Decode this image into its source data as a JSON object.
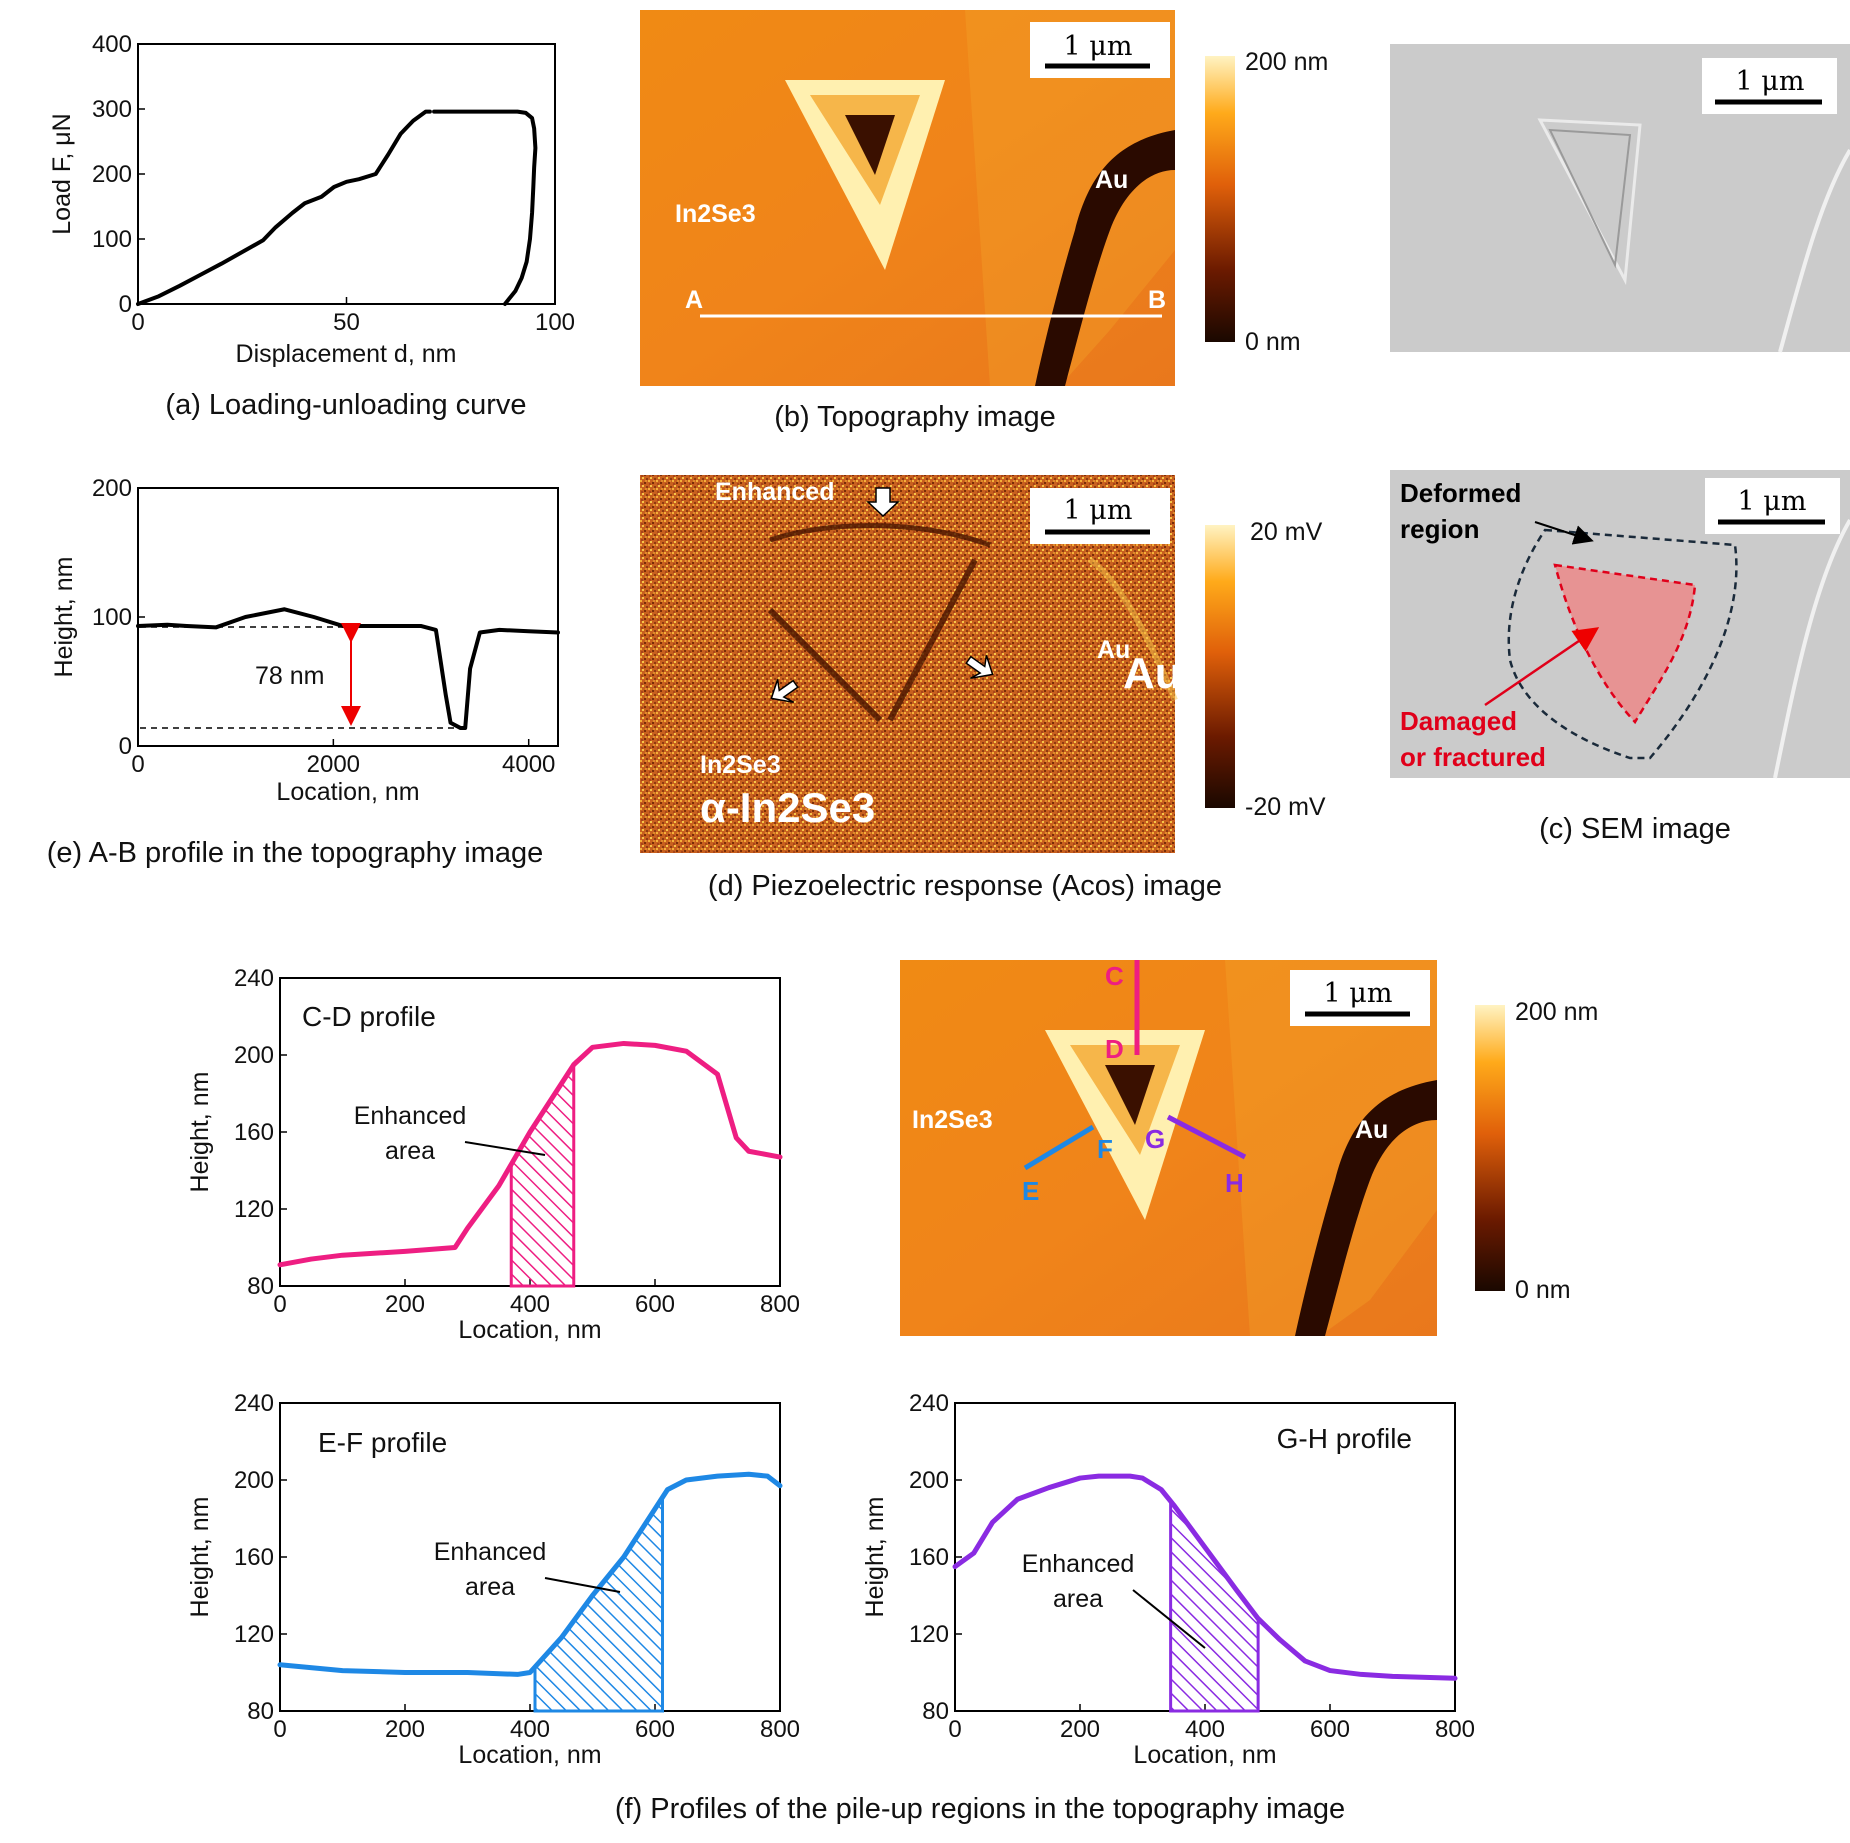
{
  "captions": {
    "a": "(a) Loading-unloading curve",
    "b": "(b) Topography image",
    "c": "(c) SEM image",
    "d": "(d) Piezoelectric response (Acos) image",
    "e": "(e) A-B profile in the topography image",
    "f": "(f) Profiles of the pile-up regions in the topography image"
  },
  "panel_a": {
    "ylabel": "Load F, μN",
    "xlabel": "Displacement d, nm",
    "x_ticks": [
      "0",
      "50",
      "100"
    ],
    "y_ticks": [
      "0",
      "100",
      "200",
      "300",
      "400"
    ],
    "chart_data": {
      "type": "line",
      "xlim": [
        0,
        100
      ],
      "ylim": [
        0,
        400
      ],
      "series": [
        {
          "x": [
            0,
            5,
            10,
            15,
            20,
            25,
            30,
            33,
            37,
            40,
            44,
            47,
            50,
            53,
            57,
            60,
            63,
            66,
            69,
            70
          ],
          "values": [
            0,
            12,
            28,
            45,
            62,
            80,
            98,
            118,
            140,
            155,
            165,
            180,
            188,
            192,
            200,
            230,
            262,
            282,
            296,
            296
          ]
        },
        {
          "x": [
            71,
            74,
            77,
            80,
            83,
            86,
            89,
            91,
            93,
            94.5,
            95,
            95.3,
            95,
            94.8,
            94.5,
            94,
            93.2,
            92,
            90.5,
            89,
            88
          ],
          "values": [
            296,
            296,
            296,
            296,
            296,
            296,
            296,
            296,
            294,
            286,
            270,
            240,
            210,
            180,
            140,
            100,
            65,
            40,
            20,
            8,
            0
          ]
        }
      ]
    }
  },
  "panel_b": {
    "scale_bar": "1 μm",
    "label_in2se3": "In2Se3",
    "label_au": "Au",
    "point_a": "A",
    "point_b": "B",
    "colorbar_max": "200 nm",
    "colorbar_min": "0 nm"
  },
  "panel_c": {
    "scale_bar": "1 μm",
    "deformed_line1": "Deformed",
    "deformed_line2": "region",
    "damaged_line1": "Damaged",
    "damaged_line2": "or fractured"
  },
  "panel_d": {
    "scale_bar": "1 μm",
    "enhanced": "Enhanced",
    "au_small": "Au",
    "au_large": "Au",
    "in2se3_small": "In2Se3",
    "alpha_in2se3": "α-In2Se3",
    "colorbar_max": "20 mV",
    "colorbar_min": "-20 mV"
  },
  "panel_e": {
    "ylabel": "Height, nm",
    "xlabel": "Location, nm",
    "x_ticks": [
      "0",
      "2000",
      "4000"
    ],
    "y_ticks": [
      "0",
      "100",
      "200"
    ],
    "annotation": "78 nm",
    "chart_data": {
      "type": "line",
      "xlim": [
        0,
        4300
      ],
      "ylim": [
        0,
        200
      ],
      "x": [
        0,
        300,
        500,
        800,
        1100,
        1500,
        1800,
        2100,
        2500,
        2900,
        3050,
        3150,
        3200,
        3300,
        3350,
        3400,
        3500,
        3700,
        4000,
        4300
      ],
      "values": [
        93,
        94,
        93,
        92,
        100,
        106,
        100,
        93,
        93,
        93,
        90,
        40,
        18,
        14,
        14,
        60,
        88,
        90,
        89,
        88
      ]
    }
  },
  "panel_f_image": {
    "scale_bar": "1 μm",
    "label_in2se3": "In2Se3",
    "label_au": "Au",
    "pt_c": "C",
    "pt_d": "D",
    "pt_e": "E",
    "pt_f": "F",
    "pt_g": "G",
    "pt_h": "H",
    "colorbar_max": "200 nm",
    "colorbar_min": "0 nm"
  },
  "profiles": {
    "cd": {
      "title": "C-D profile",
      "enhanced1": "Enhanced",
      "enhanced2": "area",
      "ylabel": "Height, nm",
      "xlabel": "Location, nm",
      "x_ticks": [
        "0",
        "200",
        "400",
        "600",
        "800"
      ],
      "y_ticks": [
        "80",
        "120",
        "160",
        "200",
        "240"
      ],
      "chart_data": {
        "type": "line",
        "xlim": [
          0,
          800
        ],
        "ylim": [
          80,
          240
        ],
        "x": [
          0,
          50,
          100,
          200,
          280,
          300,
          350,
          400,
          450,
          470,
          500,
          550,
          600,
          650,
          700,
          730,
          750,
          800
        ],
        "values": [
          91,
          94,
          96,
          98,
          100,
          110,
          132,
          160,
          185,
          195,
          204,
          206,
          205,
          202,
          190,
          157,
          150,
          147
        ],
        "enhanced_range": [
          370,
          470
        ],
        "color": "#ee1e82"
      }
    },
    "ef": {
      "title": "E-F profile",
      "enhanced1": "Enhanced",
      "enhanced2": "area",
      "ylabel": "Height, nm",
      "xlabel": "Location, nm",
      "x_ticks": [
        "0",
        "200",
        "400",
        "600",
        "800"
      ],
      "y_ticks": [
        "80",
        "120",
        "160",
        "200",
        "240"
      ],
      "chart_data": {
        "type": "line",
        "xlim": [
          0,
          800
        ],
        "ylim": [
          80,
          240
        ],
        "x": [
          0,
          100,
          200,
          300,
          380,
          400,
          450,
          500,
          550,
          600,
          620,
          650,
          700,
          750,
          780,
          800
        ],
        "values": [
          104,
          101,
          100,
          100,
          99,
          100,
          118,
          140,
          160,
          185,
          195,
          200,
          202,
          203,
          202,
          197
        ],
        "enhanced_range": [
          408,
          612
        ],
        "color": "#1e88e5"
      }
    },
    "gh": {
      "title": "G-H profile",
      "enhanced1": "Enhanced",
      "enhanced2": "area",
      "ylabel": "Height, nm",
      "xlabel": "Location, nm",
      "x_ticks": [
        "0",
        "200",
        "400",
        "600",
        "800"
      ],
      "y_ticks": [
        "80",
        "120",
        "160",
        "200",
        "240"
      ],
      "chart_data": {
        "type": "line",
        "xlim": [
          0,
          800
        ],
        "ylim": [
          80,
          240
        ],
        "x": [
          0,
          30,
          60,
          100,
          150,
          200,
          230,
          280,
          300,
          330,
          350,
          400,
          450,
          485,
          520,
          560,
          600,
          650,
          700,
          800
        ],
        "values": [
          155,
          162,
          178,
          190,
          196,
          201,
          202,
          202,
          201,
          195,
          187,
          165,
          143,
          128,
          117,
          106,
          101,
          99,
          98,
          97
        ],
        "enhanced_range": [
          345,
          485
        ],
        "color": "#8a2be2"
      }
    }
  }
}
